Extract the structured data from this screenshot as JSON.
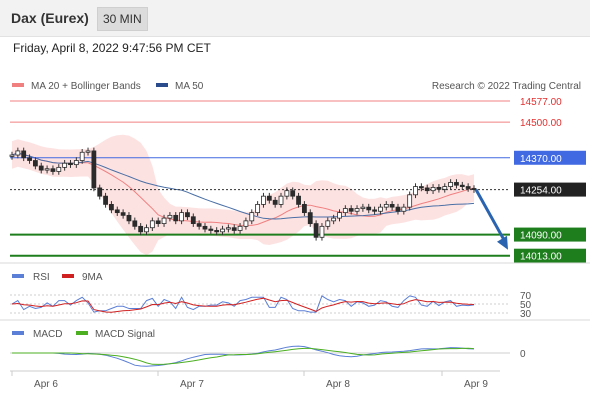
{
  "header": {
    "title": "Dax (Eurex)",
    "timeframe": "30 MIN"
  },
  "datetime": "Friday, April 8, 2022 9:47:56 PM CET",
  "legend": {
    "ma_bb": "MA 20 + Bollinger Bands",
    "ma50": "MA 50",
    "credit": "Research © 2022 Trading Central",
    "rsi": "RSI",
    "rsi_ma": "9MA",
    "macd": "MACD",
    "macd_signal": "MACD Signal"
  },
  "colors": {
    "up": "#2e7d32",
    "down": "#2e7d32",
    "ma20": "#f08080",
    "ma50": "#4a6fa5",
    "band": "#fde2e2",
    "resistance": "#f08080",
    "pivot": "#4169e1",
    "support": "#1e7e1e",
    "arrow": "#2a64b0",
    "rsi": "#5b7fd6",
    "rsi_ma": "#d02020",
    "macd": "#5b7fd6",
    "macd_signal": "#4caf22"
  },
  "chart_data": [
    {
      "type": "candlestick",
      "title": "Dax (Eurex) 30 MIN",
      "x_labels": [
        "Apr 6",
        "Apr 7",
        "Apr 8",
        "Apr 9"
      ],
      "ylim": [
        13990,
        14690
      ],
      "levels": [
        {
          "label": "14577.00",
          "value": 14577,
          "kind": "resistance"
        },
        {
          "label": "14500.00",
          "value": 14500,
          "kind": "resistance"
        },
        {
          "label": "14370.00",
          "value": 14370,
          "kind": "pivot"
        },
        {
          "label": "14254.00",
          "value": 14254,
          "kind": "last"
        },
        {
          "label": "14090.00",
          "value": 14090,
          "kind": "support"
        },
        {
          "label": "14013.00",
          "value": 14013,
          "kind": "support"
        }
      ],
      "close_path": [
        14380,
        14395,
        14370,
        14360,
        14340,
        14325,
        14330,
        14320,
        14335,
        14350,
        14345,
        14360,
        14390,
        14395,
        14260,
        14230,
        14200,
        14180,
        14170,
        14160,
        14140,
        14120,
        14100,
        14115,
        14140,
        14130,
        14150,
        14160,
        14140,
        14170,
        14155,
        14130,
        14120,
        14110,
        14105,
        14100,
        14110,
        14115,
        14105,
        14120,
        14140,
        14170,
        14200,
        14230,
        14215,
        14200,
        14230,
        14250,
        14230,
        14200,
        14170,
        14130,
        14080,
        14120,
        14140,
        14150,
        14170,
        14185,
        14175,
        14185,
        14190,
        14180,
        14175,
        14190,
        14200,
        14190,
        14175,
        14190,
        14235,
        14265,
        14260,
        14250,
        14262,
        14255,
        14265,
        14280,
        14270,
        14265,
        14258,
        14254
      ],
      "forecast_target": 14013
    },
    {
      "type": "line",
      "name": "RSI",
      "levels": [
        70,
        50,
        30
      ],
      "ylim": [
        20,
        80
      ]
    },
    {
      "type": "line",
      "name": "MACD",
      "levels": [
        0
      ]
    }
  ]
}
